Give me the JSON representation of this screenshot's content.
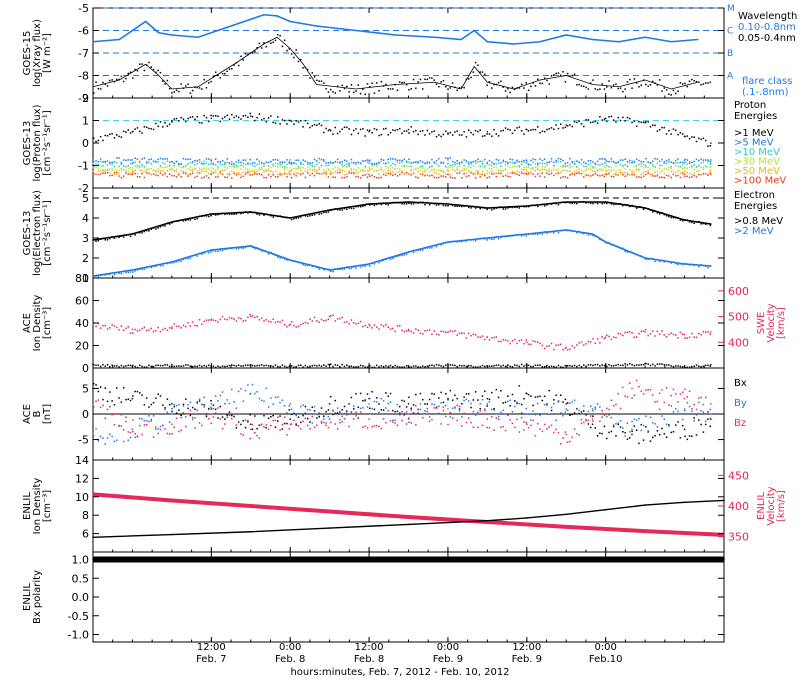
{
  "x_axis": {
    "ticks": [
      {
        "time": "12:00",
        "date": "Feb. 7"
      },
      {
        "time": "0:00",
        "date": "Feb. 8"
      },
      {
        "time": "12:00",
        "date": "Feb. 8"
      },
      {
        "time": "0:00",
        "date": "Feb. 9"
      },
      {
        "time": "12:00",
        "date": "Feb. 9"
      },
      {
        "time": "0:00",
        "date": "Feb.10"
      }
    ],
    "label": "hours:minutes, Feb.  7, 2012 - Feb. 10, 2012",
    "range_hours": [
      -6,
      90
    ]
  },
  "colors": {
    "xray_long": "#1e78e6",
    "xray_short": "#000000",
    "dashed_lines": "#1e78e6",
    "proton_threshold": "#46d2e6",
    "ace_velocity": "#e6285a",
    "enlil_velocity": "#e6285a",
    "bx": "#000000",
    "by": "#1e78e6",
    "bz": "#e6285a"
  },
  "legends": {
    "xray": {
      "title": "Wavelength",
      "long": "0.10-0.8nm",
      "short": "0.05-0.4nm",
      "class_title": "flare class",
      "class_sub": "(.1-.8nm)",
      "classes": [
        "M",
        "C",
        "B",
        "A"
      ]
    },
    "proton": {
      "title1": "Proton",
      "title2": "Energies",
      "entries": [
        {
          "label": ">1 MeV",
          "color": "#000000"
        },
        {
          "label": ">5 MeV",
          "color": "#1e78e6"
        },
        {
          "label": ">10 MeV",
          "color": "#2ec8c8"
        },
        {
          "label": ">30 MeV",
          "color": "#b4e61e"
        },
        {
          "label": ">50 MeV",
          "color": "#f0b41e"
        },
        {
          "label": ">100 MeV",
          "color": "#e63c1e"
        }
      ]
    },
    "electron": {
      "title1": "Electron",
      "title2": "Energies",
      "entries": [
        {
          "label": ">0.8 MeV",
          "color": "#000000"
        },
        {
          "label": ">2 MeV",
          "color": "#1e78e6"
        }
      ]
    },
    "ace_b": {
      "bx": "Bx",
      "by": "By",
      "bz": "Bz"
    }
  },
  "chart_data": [
    {
      "type": "line",
      "panel": "goes15-xray",
      "ylabel_lines": [
        "GOES-15",
        "log(Xray flux)",
        "[W m⁻²]"
      ],
      "ylim": [
        -9,
        -5
      ],
      "yticks": [
        "-9",
        "-8",
        "-7",
        "-6",
        "-5"
      ],
      "reference_levels": [
        -5,
        -6,
        -7,
        -8
      ],
      "series": [
        {
          "x": [
            -6,
            -2,
            2,
            4,
            6,
            10,
            16,
            18,
            20,
            22,
            24,
            28,
            34,
            40,
            46,
            50,
            52,
            54,
            58,
            62,
            66,
            70,
            74,
            78,
            82,
            86
          ],
          "y": [
            -6.5,
            -6.4,
            -5.6,
            -6.1,
            -6.2,
            -6.3,
            -5.7,
            -5.5,
            -5.3,
            -5.35,
            -5.6,
            -5.8,
            -6.0,
            -6.2,
            -6.3,
            -6.4,
            -6.0,
            -6.5,
            -6.6,
            -6.5,
            -6.2,
            -6.4,
            -6.5,
            -6.3,
            -6.5,
            -6.4
          ]
        },
        {
          "x": [
            -6,
            -2,
            2,
            4,
            6,
            10,
            16,
            18,
            20,
            22,
            24,
            26,
            28,
            34,
            40,
            46,
            50,
            52,
            54,
            58,
            62,
            66,
            70,
            74,
            78,
            82,
            86
          ],
          "y": [
            -8.5,
            -8.2,
            -7.5,
            -8.0,
            -8.6,
            -8.5,
            -7.4,
            -7.0,
            -6.6,
            -6.3,
            -6.8,
            -7.5,
            -8.4,
            -8.6,
            -8.4,
            -8.3,
            -8.6,
            -7.6,
            -8.3,
            -8.6,
            -8.2,
            -8.0,
            -8.4,
            -8.5,
            -8.2,
            -8.6,
            -8.3
          ]
        }
      ]
    },
    {
      "type": "scatter",
      "panel": "goes13-proton",
      "ylabel_lines": [
        "GOES-13",
        "log(Proton flux)",
        "[cm⁻²s⁻¹sr⁻¹]"
      ],
      "ylim": [
        -2,
        2
      ],
      "yticks": [
        "-2",
        "-1",
        "0",
        "1",
        "2"
      ],
      "reference_levels": [
        1
      ],
      "series": [
        {
          "name": ">1 MeV",
          "x": [
            -6,
            0,
            6,
            12,
            18,
            24,
            30,
            36,
            42,
            48,
            54,
            60,
            66,
            72,
            78,
            84,
            88
          ],
          "y": [
            0.2,
            0.5,
            1.0,
            1.1,
            1.2,
            1.0,
            0.6,
            0.5,
            0.6,
            0.4,
            0.5,
            0.6,
            0.8,
            1.1,
            0.9,
            0.3,
            0.0
          ]
        },
        {
          "name": ">5 MeV",
          "x": [
            -6,
            0,
            12,
            24,
            36,
            48,
            60,
            72,
            84,
            88
          ],
          "y": [
            -0.75,
            -0.75,
            -0.8,
            -0.75,
            -0.8,
            -0.75,
            -0.8,
            -0.75,
            -0.8,
            -0.75
          ]
        },
        {
          "name": ">10 MeV",
          "x": [
            -6,
            0,
            12,
            24,
            36,
            48,
            60,
            72,
            84,
            88
          ],
          "y": [
            -0.9,
            -0.9,
            -0.9,
            -0.9,
            -0.9,
            -0.9,
            -0.9,
            -0.9,
            -0.9,
            -0.9
          ]
        },
        {
          "name": ">30 MeV",
          "x": [
            -6,
            0,
            12,
            24,
            36,
            48,
            60,
            72,
            84,
            88
          ],
          "y": [
            -1.1,
            -1.1,
            -1.1,
            -1.1,
            -1.1,
            -1.1,
            -1.1,
            -1.1,
            -1.1,
            -1.1
          ]
        },
        {
          "name": ">50 MeV",
          "x": [
            -6,
            0,
            12,
            24,
            36,
            48,
            60,
            72,
            84,
            88
          ],
          "y": [
            -1.25,
            -1.25,
            -1.25,
            -1.25,
            -1.25,
            -1.25,
            -1.25,
            -1.25,
            -1.25,
            -1.25
          ]
        },
        {
          "name": ">100 MeV",
          "x": [
            -6,
            0,
            12,
            24,
            36,
            48,
            60,
            72,
            84,
            88
          ],
          "y": [
            -1.4,
            -1.4,
            -1.4,
            -1.4,
            -1.4,
            -1.4,
            -1.4,
            -1.4,
            -1.4,
            -1.4
          ]
        }
      ]
    },
    {
      "type": "line",
      "panel": "goes13-electron",
      "ylabel_lines": [
        "GOES-13",
        "log(Electron flux)",
        "[cm⁻²s⁻¹sr⁻¹]"
      ],
      "ylim": [
        1,
        5.5
      ],
      "yticks": [
        "1",
        "2",
        "3",
        "4",
        "5"
      ],
      "reference_levels": [
        5
      ],
      "series": [
        {
          "name": ">0.8 MeV",
          "x": [
            -6,
            0,
            6,
            12,
            18,
            24,
            30,
            36,
            42,
            48,
            54,
            60,
            66,
            72,
            78,
            84,
            88
          ],
          "y": [
            2.9,
            3.2,
            3.8,
            4.2,
            4.3,
            4.0,
            4.4,
            4.7,
            4.8,
            4.7,
            4.5,
            4.6,
            4.8,
            4.8,
            4.5,
            3.9,
            3.7
          ]
        },
        {
          "name": ">2 MeV",
          "x": [
            -6,
            0,
            6,
            12,
            18,
            24,
            30,
            36,
            42,
            48,
            54,
            60,
            66,
            70,
            72,
            78,
            84,
            88
          ],
          "y": [
            1.1,
            1.4,
            1.8,
            2.4,
            2.6,
            1.9,
            1.4,
            1.7,
            2.3,
            2.8,
            3.0,
            3.2,
            3.4,
            3.2,
            2.8,
            2.0,
            1.7,
            1.6
          ]
        }
      ]
    },
    {
      "type": "scatter",
      "panel": "ace-density-velocity",
      "ylabel_lines": [
        "ACE",
        "Ion Density",
        "[cm⁻³]"
      ],
      "ylabel_right_lines": [
        "SWE",
        "Velocity",
        "[km/s]"
      ],
      "ylim": [
        0,
        80
      ],
      "ylim_right": [
        300,
        650
      ],
      "yticks": [
        "0",
        "20",
        "40",
        "60",
        "80"
      ],
      "yticks_right": [
        "400",
        "500",
        "600"
      ],
      "series": [
        {
          "name": "density",
          "x": [
            -6,
            0,
            6,
            12,
            18,
            24,
            30,
            36,
            42,
            48,
            54,
            60,
            66,
            72,
            78,
            84,
            88
          ],
          "y": [
            3,
            2,
            3,
            2,
            3,
            2,
            3,
            2,
            2,
            3,
            2,
            3,
            2,
            3,
            4,
            2,
            3
          ]
        },
        {
          "name": "velocity",
          "x": [
            -6,
            0,
            6,
            12,
            18,
            24,
            30,
            36,
            42,
            48,
            54,
            60,
            66,
            72,
            78,
            84,
            88
          ],
          "y": [
            470,
            450,
            460,
            490,
            500,
            470,
            500,
            470,
            450,
            440,
            420,
            400,
            380,
            420,
            440,
            430,
            440
          ]
        }
      ]
    },
    {
      "type": "scatter",
      "panel": "ace-b",
      "ylabel_lines": [
        "ACE",
        "B",
        "[nT]"
      ],
      "ylim": [
        -9,
        9
      ],
      "yticks": [
        "-5",
        "0",
        "5"
      ],
      "reference_levels": [
        0
      ],
      "series": [
        {
          "name": "Bx",
          "x": [
            -6,
            0,
            6,
            12,
            18,
            24,
            30,
            36,
            42,
            48,
            54,
            60,
            66,
            70,
            76,
            84,
            88
          ],
          "y": [
            5,
            3,
            2,
            1,
            -2,
            -1,
            2,
            3,
            2,
            3,
            3,
            4,
            2,
            -2,
            -4,
            -3,
            -1
          ]
        },
        {
          "name": "By",
          "x": [
            -6,
            0,
            6,
            12,
            18,
            24,
            30,
            36,
            42,
            48,
            54,
            60,
            66,
            70,
            76,
            84,
            88
          ],
          "y": [
            -4,
            -3,
            0,
            2,
            4,
            2,
            -1,
            2,
            0,
            1,
            2,
            0,
            1,
            1,
            -3,
            1,
            0
          ]
        },
        {
          "name": "Bz",
          "x": [
            -6,
            0,
            6,
            12,
            18,
            24,
            30,
            36,
            42,
            48,
            54,
            60,
            66,
            70,
            76,
            84,
            88
          ],
          "y": [
            2,
            -3,
            -2,
            0,
            -3,
            -2,
            -1,
            -1,
            -1,
            0,
            -1,
            -2,
            -4,
            -1,
            5,
            3,
            2
          ]
        }
      ]
    },
    {
      "type": "line",
      "panel": "enlil-density-velocity",
      "ylabel_lines": [
        "ENLIL",
        "Ion Density",
        "[cm⁻³]"
      ],
      "ylabel_right_lines": [
        "ENLIL",
        "Velocity",
        "[km/s]"
      ],
      "ylim": [
        4,
        14
      ],
      "ylim_right": [
        325,
        475
      ],
      "yticks": [
        "6",
        "8",
        "10",
        "12",
        "14"
      ],
      "yticks_right": [
        "350",
        "400",
        "450"
      ],
      "series": [
        {
          "name": "density",
          "x": [
            -6,
            6,
            18,
            30,
            42,
            54,
            60,
            66,
            72,
            78,
            84,
            90
          ],
          "y": [
            5.6,
            5.9,
            6.2,
            6.6,
            7.0,
            7.4,
            7.7,
            8.1,
            8.6,
            9.1,
            9.4,
            9.6
          ]
        },
        {
          "name": "velocity",
          "x": [
            -6,
            6,
            18,
            30,
            42,
            54,
            66,
            78,
            90
          ],
          "y": [
            419,
            409,
            400,
            391,
            382,
            374,
            366,
            359,
            353
          ]
        }
      ]
    },
    {
      "type": "line",
      "panel": "enlil-polarity",
      "ylabel_lines": [
        "ENLIL",
        "Bx polarity"
      ],
      "ylim": [
        -1.2,
        1.2
      ],
      "yticks": [
        "-1.0",
        "-0.5",
        "0.0",
        "0.5",
        "1.0"
      ],
      "series": [
        {
          "name": "polarity",
          "x": [
            -6,
            90
          ],
          "y": [
            1,
            1
          ]
        }
      ]
    }
  ]
}
